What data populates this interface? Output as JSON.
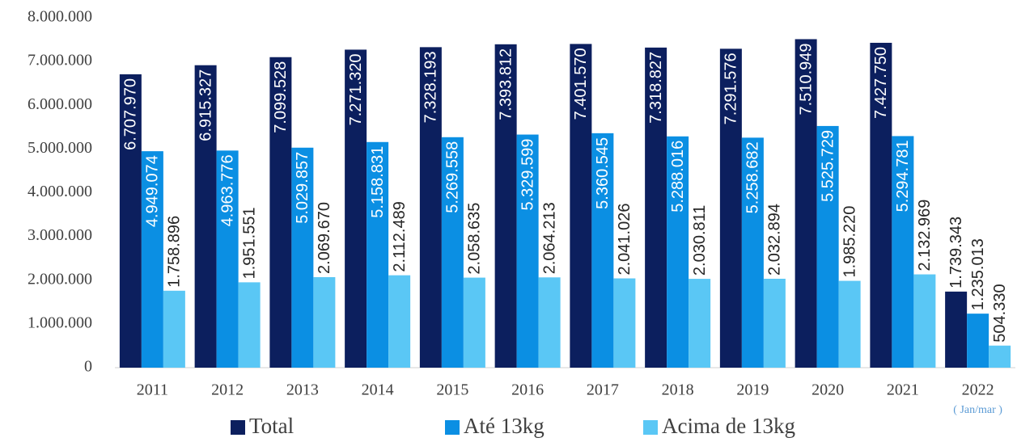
{
  "chart_data": {
    "type": "bar",
    "categories": [
      "2011",
      "2012",
      "2013",
      "2014",
      "2015",
      "2016",
      "2017",
      "2018",
      "2019",
      "2020",
      "2021",
      "2022"
    ],
    "annotation": "( Jan/mar )",
    "series": [
      {
        "name": "Total",
        "color": "#0c1f5e",
        "values": [
          6707970,
          6915327,
          7099528,
          7271320,
          7328193,
          7393812,
          7401570,
          7318827,
          7291576,
          7510949,
          7427750,
          1739343
        ],
        "value_labels": [
          "6.707.970",
          "6.915.327",
          "7.099.528",
          "7.271.320",
          "7.328.193",
          "7.393.812",
          "7.401.570",
          "7.318.827",
          "7.291.576",
          "7.510.949",
          "7.427.750",
          "1.739.343"
        ]
      },
      {
        "name": "Até 13kg",
        "color": "#0b8fe3",
        "values": [
          4949074,
          4963776,
          5029857,
          5158831,
          5269558,
          5329599,
          5360545,
          5288016,
          5258682,
          5525729,
          5294781,
          1235013
        ],
        "value_labels": [
          "4.949.074",
          "4.963.776",
          "5.029.857",
          "5.158.831",
          "5.269.558",
          "5.329.599",
          "5.360.545",
          "5.288.016",
          "5.258.682",
          "5.525.729",
          "5.294.781",
          "1.235.013"
        ]
      },
      {
        "name": "Acima de 13kg",
        "color": "#5ac7f5",
        "values": [
          1758896,
          1951551,
          2069670,
          2112489,
          2058635,
          2064213,
          2041026,
          2030811,
          2032894,
          1985220,
          2132969,
          504330
        ],
        "value_labels": [
          "1.758.896",
          "1.951.551",
          "2.069.670",
          "2.112.489",
          "2.058.635",
          "2.064.213",
          "2.041.026",
          "2.030.811",
          "2.032.894",
          "1.985.220",
          "2.132.969",
          "504.330"
        ]
      }
    ],
    "ylim": [
      0,
      8000000
    ],
    "yticks": [
      0,
      {
        "value": 1000000,
        "label": "1.000.000"
      },
      {
        "value": 2000000,
        "label": "2.000.000"
      },
      {
        "value": 3000000,
        "label": "3.000.000"
      },
      {
        "value": 4000000,
        "label": "4.000.000"
      },
      {
        "value": 5000000,
        "label": "5.000.000"
      },
      {
        "value": 6000000,
        "label": "6.000.000"
      },
      {
        "value": 7000000,
        "label": "7.000.000"
      },
      {
        "value": 8000000,
        "label": "8.000.000"
      }
    ],
    "grid": false,
    "legend": "bottom"
  }
}
